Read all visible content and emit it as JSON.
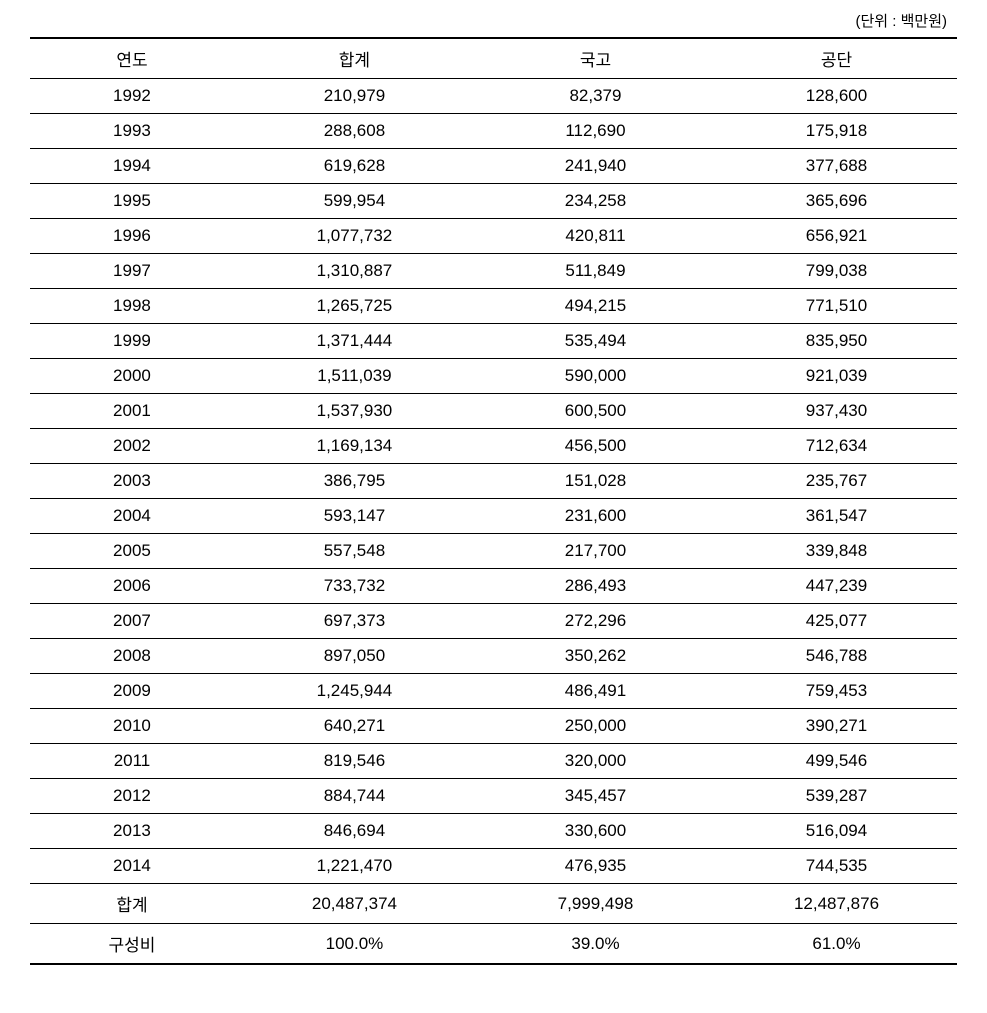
{
  "unit_label": "(단위 : 백만원)",
  "table": {
    "columns": [
      "연도",
      "합계",
      "국고",
      "공단"
    ],
    "rows": [
      [
        "1992",
        "210,979",
        "82,379",
        "128,600"
      ],
      [
        "1993",
        "288,608",
        "112,690",
        "175,918"
      ],
      [
        "1994",
        "619,628",
        "241,940",
        "377,688"
      ],
      [
        "1995",
        "599,954",
        "234,258",
        "365,696"
      ],
      [
        "1996",
        "1,077,732",
        "420,811",
        "656,921"
      ],
      [
        "1997",
        "1,310,887",
        "511,849",
        "799,038"
      ],
      [
        "1998",
        "1,265,725",
        "494,215",
        "771,510"
      ],
      [
        "1999",
        "1,371,444",
        "535,494",
        "835,950"
      ],
      [
        "2000",
        "1,511,039",
        "590,000",
        "921,039"
      ],
      [
        "2001",
        "1,537,930",
        "600,500",
        "937,430"
      ],
      [
        "2002",
        "1,169,134",
        "456,500",
        "712,634"
      ],
      [
        "2003",
        "386,795",
        "151,028",
        "235,767"
      ],
      [
        "2004",
        "593,147",
        "231,600",
        "361,547"
      ],
      [
        "2005",
        "557,548",
        "217,700",
        "339,848"
      ],
      [
        "2006",
        "733,732",
        "286,493",
        "447,239"
      ],
      [
        "2007",
        "697,373",
        "272,296",
        "425,077"
      ],
      [
        "2008",
        "897,050",
        "350,262",
        "546,788"
      ],
      [
        "2009",
        "1,245,944",
        "486,491",
        "759,453"
      ],
      [
        "2010",
        "640,271",
        "250,000",
        "390,271"
      ],
      [
        "2011",
        "819,546",
        "320,000",
        "499,546"
      ],
      [
        "2012",
        "884,744",
        "345,457",
        "539,287"
      ],
      [
        "2013",
        "846,694",
        "330,600",
        "516,094"
      ],
      [
        "2014",
        "1,221,470",
        "476,935",
        "744,535"
      ],
      [
        "합계",
        "20,487,374",
        "7,999,498",
        "12,487,876"
      ],
      [
        "구성비",
        "100.0%",
        "39.0%",
        "61.0%"
      ]
    ],
    "column_widths": [
      "22%",
      "26%",
      "26%",
      "26%"
    ],
    "border_color": "#000000",
    "background_color": "#ffffff",
    "font_size": 17,
    "text_color": "#000000"
  }
}
